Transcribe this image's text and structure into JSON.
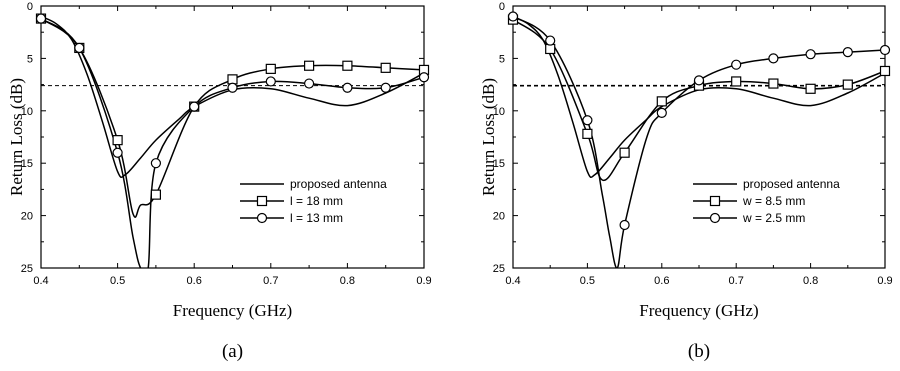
{
  "chart_data": [
    {
      "type": "line",
      "caption": "(a)",
      "xlabel": "Frequency (GHz)",
      "ylabel": "Return Loss (dB)",
      "xlim": [
        0.4,
        0.9
      ],
      "ylim": [
        0,
        25
      ],
      "y_inverted": true,
      "xticks": [
        "0.4",
        "0.5",
        "0.6",
        "0.7",
        "0.8",
        "0.9"
      ],
      "yticks": [
        "0",
        "5",
        "10",
        "15",
        "20",
        "25"
      ],
      "grid": false,
      "legend_position": "right",
      "reference_line": {
        "style": "dashed",
        "y": 7.6
      },
      "series": [
        {
          "name": "proposed antenna",
          "marker": "none",
          "x": [
            0.4,
            0.42,
            0.44,
            0.46,
            0.48,
            0.5,
            0.51,
            0.53,
            0.55,
            0.58,
            0.6,
            0.65,
            0.7,
            0.75,
            0.8,
            0.85,
            0.9
          ],
          "y": [
            1.0,
            1.7,
            3.2,
            6.5,
            11.0,
            15.8,
            16.1,
            14.5,
            12.8,
            10.8,
            9.6,
            8.0,
            7.9,
            8.8,
            9.5,
            8.3,
            6.4
          ]
        },
        {
          "name": "l = 18 mm",
          "marker": "square",
          "x": [
            0.4,
            0.45,
            0.5,
            0.52,
            0.53,
            0.55,
            0.6,
            0.65,
            0.7,
            0.75,
            0.8,
            0.85,
            0.9
          ],
          "y": [
            1.2,
            4.0,
            12.8,
            19.8,
            19.0,
            18.0,
            9.6,
            7.0,
            6.0,
            5.7,
            5.7,
            5.9,
            6.1
          ]
        },
        {
          "name": "l = 13 mm",
          "marker": "circle",
          "x": [
            0.4,
            0.45,
            0.5,
            0.52,
            0.53,
            0.54,
            0.55,
            0.6,
            0.65,
            0.7,
            0.75,
            0.8,
            0.85,
            0.9
          ],
          "y": [
            1.2,
            4.0,
            14.0,
            22.0,
            25.0,
            25.0,
            15.0,
            9.6,
            7.8,
            7.2,
            7.4,
            7.8,
            7.8,
            6.8
          ]
        }
      ]
    },
    {
      "type": "line",
      "caption": "(b)",
      "xlabel": "Frequency (GHz)",
      "ylabel": "Return Loss (dB)",
      "xlim": [
        0.4,
        0.9
      ],
      "ylim": [
        0,
        25
      ],
      "y_inverted": true,
      "xticks": [
        "0.4",
        "0.5",
        "0.6",
        "0.7",
        "0.8",
        "0.9"
      ],
      "yticks": [
        "0",
        "5",
        "10",
        "15",
        "20",
        "25"
      ],
      "grid": false,
      "legend_position": "right",
      "reference_line": {
        "style": "dashed",
        "y": 7.6
      },
      "series": [
        {
          "name": "proposed antenna",
          "marker": "none",
          "x": [
            0.4,
            0.42,
            0.44,
            0.46,
            0.48,
            0.5,
            0.51,
            0.53,
            0.55,
            0.58,
            0.6,
            0.65,
            0.7,
            0.75,
            0.8,
            0.85,
            0.9
          ],
          "y": [
            1.0,
            1.7,
            3.2,
            6.5,
            11.0,
            15.8,
            16.1,
            14.5,
            12.8,
            10.8,
            9.6,
            8.0,
            7.9,
            8.8,
            9.5,
            8.3,
            6.4
          ]
        },
        {
          "name": "w = 8.5 mm",
          "marker": "square",
          "x": [
            0.4,
            0.45,
            0.5,
            0.52,
            0.55,
            0.6,
            0.65,
            0.7,
            0.75,
            0.8,
            0.85,
            0.9
          ],
          "y": [
            1.3,
            4.1,
            12.2,
            16.6,
            14.0,
            9.1,
            7.6,
            7.2,
            7.4,
            7.9,
            7.5,
            6.2
          ]
        },
        {
          "name": "w = 2.5 mm",
          "marker": "circle",
          "x": [
            0.4,
            0.45,
            0.5,
            0.52,
            0.53,
            0.54,
            0.55,
            0.58,
            0.6,
            0.65,
            0.7,
            0.75,
            0.8,
            0.85,
            0.9
          ],
          "y": [
            1.0,
            3.3,
            10.9,
            18.0,
            22.0,
            25.0,
            20.9,
            12.5,
            10.2,
            7.1,
            5.6,
            5.0,
            4.6,
            4.4,
            4.2
          ]
        }
      ]
    }
  ]
}
